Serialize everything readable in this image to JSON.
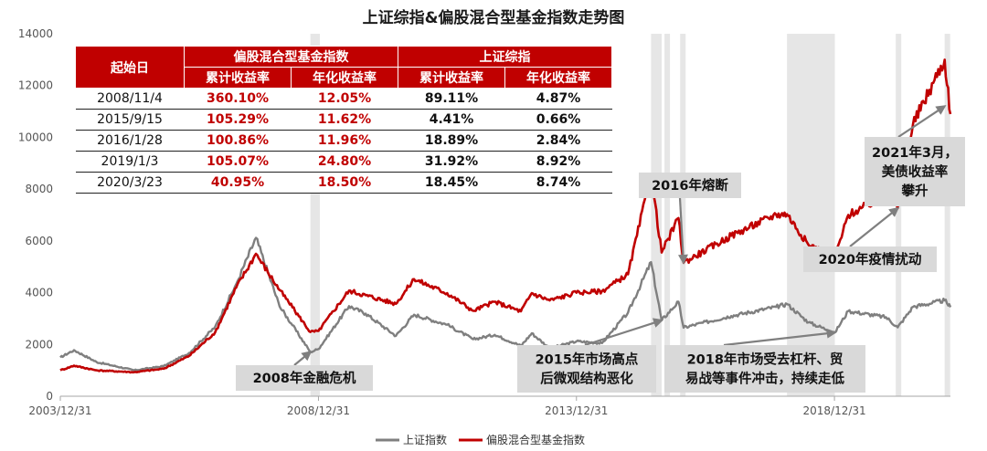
{
  "chart_data": {
    "type": "line",
    "title": "上证综指&偏股混合型基金指数走势图",
    "xlabel": "",
    "ylabel": "",
    "ylim": [
      0,
      14000
    ],
    "y_ticks": [
      "0",
      "2000",
      "4000",
      "6000",
      "8000",
      "10000",
      "12000",
      "14000"
    ],
    "x_tick_labels": [
      "2003/12/31",
      "2008/12/31",
      "2013/12/31",
      "2018/12/31"
    ],
    "x_range": [
      "2003-12-31",
      "2021-03-31"
    ],
    "grid": false,
    "legend_position": "bottom",
    "series": [
      {
        "name": "上证指数",
        "color": "#7f7f7f",
        "points": [
          [
            "2003-12-31",
            1500
          ],
          [
            "2004-04-06",
            1780
          ],
          [
            "2004-09-13",
            1320
          ],
          [
            "2005-06-06",
            1000
          ],
          [
            "2005-12-31",
            1160
          ],
          [
            "2006-06-30",
            1670
          ],
          [
            "2006-12-31",
            2680
          ],
          [
            "2007-05-29",
            4330
          ],
          [
            "2007-10-16",
            6120
          ],
          [
            "2008-03-31",
            3470
          ],
          [
            "2008-06-30",
            2740
          ],
          [
            "2008-11-04",
            1710
          ],
          [
            "2008-12-31",
            1820
          ],
          [
            "2009-08-04",
            3480
          ],
          [
            "2009-11-30",
            3190
          ],
          [
            "2010-07-02",
            2330
          ],
          [
            "2010-11-08",
            3150
          ],
          [
            "2011-06-30",
            2760
          ],
          [
            "2011-12-31",
            2200
          ],
          [
            "2012-05-31",
            2370
          ],
          [
            "2012-12-03",
            1950
          ],
          [
            "2013-02-18",
            2430
          ],
          [
            "2013-06-25",
            1850
          ],
          [
            "2013-12-31",
            2120
          ],
          [
            "2014-06-30",
            2050
          ],
          [
            "2014-12-31",
            3230
          ],
          [
            "2015-06-12",
            5180
          ],
          [
            "2015-08-26",
            2930
          ],
          [
            "2015-12-23",
            3650
          ],
          [
            "2016-01-28",
            2650
          ],
          [
            "2016-12-31",
            3100
          ],
          [
            "2017-11-13",
            3450
          ],
          [
            "2018-01-29",
            3560
          ],
          [
            "2018-06-30",
            2850
          ],
          [
            "2019-01-03",
            2460
          ],
          [
            "2019-04-08",
            3290
          ],
          [
            "2019-12-31",
            3050
          ],
          [
            "2020-03-23",
            2660
          ],
          [
            "2020-07-09",
            3450
          ],
          [
            "2021-02-18",
            3700
          ],
          [
            "2021-03-31",
            3440
          ]
        ]
      },
      {
        "name": "偏股混合型基金指数",
        "color": "#c00000",
        "points": [
          [
            "2003-12-31",
            1000
          ],
          [
            "2004-04-06",
            1180
          ],
          [
            "2004-09-13",
            1000
          ],
          [
            "2005-06-06",
            930
          ],
          [
            "2005-12-31",
            1060
          ],
          [
            "2006-06-30",
            1560
          ],
          [
            "2006-12-31",
            2470
          ],
          [
            "2007-05-29",
            4200
          ],
          [
            "2007-10-16",
            5500
          ],
          [
            "2008-03-31",
            4100
          ],
          [
            "2008-06-30",
            3430
          ],
          [
            "2008-11-04",
            2480
          ],
          [
            "2008-12-31",
            2520
          ],
          [
            "2009-08-04",
            4080
          ],
          [
            "2009-11-30",
            3900
          ],
          [
            "2010-07-02",
            3570
          ],
          [
            "2010-11-08",
            4520
          ],
          [
            "2011-06-30",
            3980
          ],
          [
            "2011-12-31",
            3300
          ],
          [
            "2012-05-31",
            3650
          ],
          [
            "2012-12-03",
            3280
          ],
          [
            "2013-02-18",
            3980
          ],
          [
            "2013-06-25",
            3700
          ],
          [
            "2013-12-31",
            4000
          ],
          [
            "2014-06-30",
            4060
          ],
          [
            "2014-12-31",
            4710
          ],
          [
            "2015-06-12",
            8560
          ],
          [
            "2015-08-26",
            5550
          ],
          [
            "2015-12-23",
            6880
          ],
          [
            "2016-01-28",
            5160
          ],
          [
            "2016-12-31",
            6200
          ],
          [
            "2017-11-13",
            7020
          ],
          [
            "2018-01-29",
            7030
          ],
          [
            "2018-06-30",
            5850
          ],
          [
            "2019-01-03",
            5350
          ],
          [
            "2019-04-08",
            7000
          ],
          [
            "2019-12-31",
            7750
          ],
          [
            "2020-03-23",
            7260
          ],
          [
            "2020-07-09",
            10500
          ],
          [
            "2021-02-18",
            13000
          ],
          [
            "2021-03-31",
            10900
          ]
        ]
      }
    ],
    "shaded_periods": [
      [
        "2008-11-04",
        "2009-01-10"
      ],
      [
        "2015-06-12",
        "2015-08-26"
      ],
      [
        "2015-09-15",
        "2015-10-20"
      ],
      [
        "2016-01-04",
        "2016-01-28"
      ],
      [
        "2018-01-29",
        "2019-01-03"
      ],
      [
        "2020-03-09",
        "2020-03-23"
      ],
      [
        "2021-02-18",
        "2021-03-10"
      ]
    ],
    "annotations": [
      {
        "id": "crisis",
        "lines": [
          "2008年金融危机"
        ],
        "point": [
          "2008-11-04",
          1710
        ]
      },
      {
        "id": "market2015",
        "lines": [
          "2015年市场高点",
          "后微观结构恶化"
        ],
        "point": [
          "2015-08-26",
          2930
        ]
      },
      {
        "id": "meltdown2016",
        "lines": [
          "2016年熔断"
        ],
        "point": [
          "2016-01-28",
          5160
        ]
      },
      {
        "id": "market2018",
        "lines": [
          "2018年市场受去杠杆、贸",
          "易战等事件冲击，持续走低"
        ],
        "point": [
          "2019-01-03",
          2460
        ]
      },
      {
        "id": "covid2020",
        "lines": [
          "2020年疫情扰动"
        ],
        "point": [
          "2020-03-23",
          7260
        ]
      },
      {
        "id": "yield2021",
        "lines": [
          "2021年3月，",
          "美债收益率",
          "攀升"
        ],
        "point": [
          "2021-02-18",
          11200
        ]
      }
    ]
  },
  "table": {
    "header_start": "起始日",
    "group1": "偏股混合型基金指数",
    "group2": "上证综指",
    "subheaders": [
      "累计收益率",
      "年化收益率",
      "累计收益率",
      "年化收益率"
    ],
    "rows": [
      {
        "date": "2008/11/4",
        "fund_cum": "360.10%",
        "fund_ann": "12.05%",
        "sh_cum": "89.11%",
        "sh_ann": "4.87%"
      },
      {
        "date": "2015/9/15",
        "fund_cum": "105.29%",
        "fund_ann": "11.62%",
        "sh_cum": "4.41%",
        "sh_ann": "0.66%"
      },
      {
        "date": "2016/1/28",
        "fund_cum": "100.86%",
        "fund_ann": "11.96%",
        "sh_cum": "18.89%",
        "sh_ann": "2.84%"
      },
      {
        "date": "2019/1/3",
        "fund_cum": "105.07%",
        "fund_ann": "24.80%",
        "sh_cum": "31.92%",
        "sh_ann": "8.92%"
      },
      {
        "date": "2020/3/23",
        "fund_cum": "40.95%",
        "fund_ann": "18.50%",
        "sh_cum": "18.45%",
        "sh_ann": "8.74%"
      }
    ]
  }
}
